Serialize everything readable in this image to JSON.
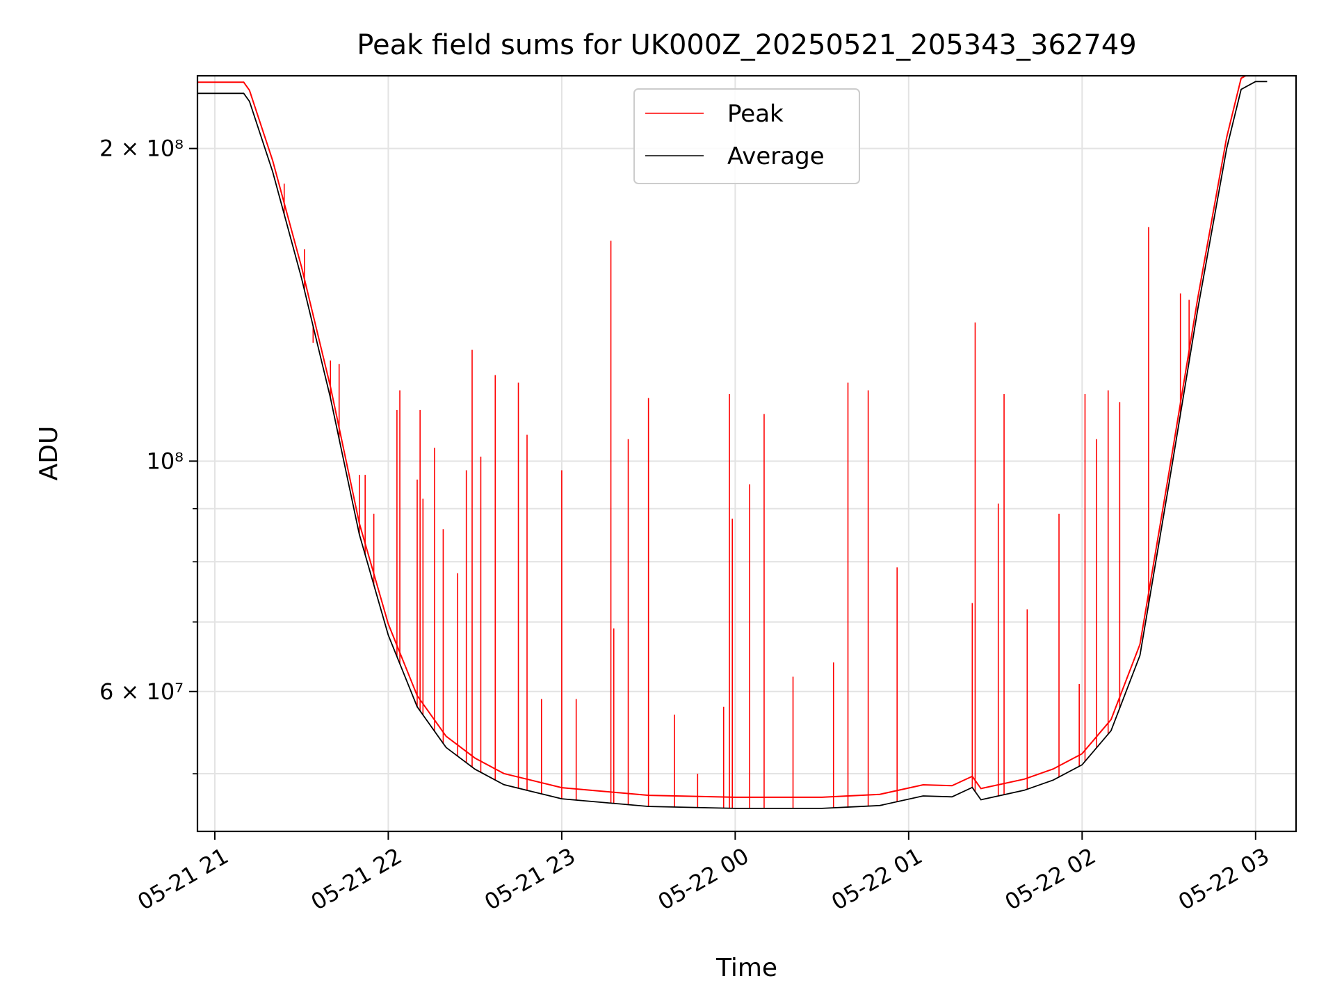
{
  "chart_data": {
    "type": "line",
    "title": "Peak field sums for UK000Z_20250521_205343_362749",
    "xlabel": "Time",
    "ylabel": "ADU",
    "y_scale": "log",
    "ylim": [
      44000000,
      235000000
    ],
    "xlim": [
      "2025-05-21T20:54",
      "2025-05-22T03:14"
    ],
    "x_ticks": [
      {
        "t": "2025-05-21T21:00",
        "label": "05-21 21"
      },
      {
        "t": "2025-05-21T22:00",
        "label": "05-21 22"
      },
      {
        "t": "2025-05-21T23:00",
        "label": "05-21 23"
      },
      {
        "t": "2025-05-22T00:00",
        "label": "05-22 00"
      },
      {
        "t": "2025-05-22T01:00",
        "label": "05-22 01"
      },
      {
        "t": "2025-05-22T02:00",
        "label": "05-22 02"
      },
      {
        "t": "2025-05-22T03:00",
        "label": "05-22 03"
      }
    ],
    "y_ticks_major": [
      {
        "v": 60000000,
        "label": "6 × 10⁷"
      },
      {
        "v": 100000000,
        "label": "10⁸"
      },
      {
        "v": 200000000,
        "label": "2 × 10⁸"
      }
    ],
    "y_ticks_minor": [
      50000000,
      70000000,
      80000000,
      90000000
    ],
    "grid": true,
    "legend_position": "top-center",
    "series": [
      {
        "name": "Average",
        "color": "#000000",
        "points": [
          [
            "2025-05-21T20:54",
            226000000
          ],
          [
            "2025-05-21T21:10",
            226000000
          ],
          [
            "2025-05-21T21:12",
            222000000
          ],
          [
            "2025-05-21T21:20",
            190000000
          ],
          [
            "2025-05-21T21:30",
            150000000
          ],
          [
            "2025-05-21T21:40",
            115000000
          ],
          [
            "2025-05-21T21:50",
            85000000
          ],
          [
            "2025-05-21T22:00",
            68000000
          ],
          [
            "2025-05-21T22:10",
            58000000
          ],
          [
            "2025-05-21T22:20",
            53000000
          ],
          [
            "2025-05-21T22:30",
            50500000
          ],
          [
            "2025-05-21T22:40",
            48800000
          ],
          [
            "2025-05-21T23:00",
            47300000
          ],
          [
            "2025-05-21T23:30",
            46500000
          ],
          [
            "2025-05-22T00:00",
            46300000
          ],
          [
            "2025-05-22T00:30",
            46300000
          ],
          [
            "2025-05-22T00:50",
            46600000
          ],
          [
            "2025-05-22T01:05",
            47600000
          ],
          [
            "2025-05-22T01:15",
            47500000
          ],
          [
            "2025-05-22T01:22",
            48500000
          ],
          [
            "2025-05-22T01:25",
            47200000
          ],
          [
            "2025-05-22T01:40",
            48200000
          ],
          [
            "2025-05-22T01:50",
            49300000
          ],
          [
            "2025-05-22T02:00",
            51000000
          ],
          [
            "2025-05-22T02:10",
            55000000
          ],
          [
            "2025-05-22T02:20",
            65000000
          ],
          [
            "2025-05-22T02:30",
            95000000
          ],
          [
            "2025-05-22T02:40",
            140000000
          ],
          [
            "2025-05-22T02:50",
            200000000
          ],
          [
            "2025-05-22T02:55",
            228000000
          ],
          [
            "2025-05-22T03:00",
            232000000
          ],
          [
            "2025-05-22T03:04",
            232000000
          ]
        ]
      },
      {
        "name": "Peak",
        "color": "#ff0000",
        "baseline_ratio": 1.025,
        "spikes": [
          [
            "2025-05-21T21:24",
            185000000
          ],
          [
            "2025-05-21T21:31",
            160000000
          ],
          [
            "2025-05-21T21:34",
            130000000
          ],
          [
            "2025-05-21T21:40",
            125000000
          ],
          [
            "2025-05-21T21:43",
            124000000
          ],
          [
            "2025-05-21T21:50",
            97000000
          ],
          [
            "2025-05-21T21:52",
            97000000
          ],
          [
            "2025-05-21T21:55",
            89000000
          ],
          [
            "2025-05-21T22:03",
            112000000
          ],
          [
            "2025-05-21T22:04",
            117000000
          ],
          [
            "2025-05-21T22:10",
            96000000
          ],
          [
            "2025-05-21T22:11",
            112000000
          ],
          [
            "2025-05-21T22:12",
            92000000
          ],
          [
            "2025-05-21T22:16",
            103000000
          ],
          [
            "2025-05-21T22:19",
            86000000
          ],
          [
            "2025-05-21T22:24",
            78000000
          ],
          [
            "2025-05-21T22:27",
            98000000
          ],
          [
            "2025-05-21T22:29",
            128000000
          ],
          [
            "2025-05-21T22:32",
            101000000
          ],
          [
            "2025-05-21T22:37",
            121000000
          ],
          [
            "2025-05-21T22:45",
            119000000
          ],
          [
            "2025-05-21T22:48",
            106000000
          ],
          [
            "2025-05-21T22:53",
            59000000
          ],
          [
            "2025-05-21T23:00",
            98000000
          ],
          [
            "2025-05-21T23:05",
            59000000
          ],
          [
            "2025-05-21T23:17",
            163000000
          ],
          [
            "2025-05-21T23:18",
            69000000
          ],
          [
            "2025-05-21T23:23",
            105000000
          ],
          [
            "2025-05-21T23:30",
            115000000
          ],
          [
            "2025-05-21T23:39",
            57000000
          ],
          [
            "2025-05-21T23:47",
            50000000
          ],
          [
            "2025-05-21T23:56",
            58000000
          ],
          [
            "2025-05-21T23:58",
            116000000
          ],
          [
            "2025-05-21T23:59",
            88000000
          ],
          [
            "2025-05-22T00:05",
            95000000
          ],
          [
            "2025-05-22T00:10",
            111000000
          ],
          [
            "2025-05-22T00:20",
            62000000
          ],
          [
            "2025-05-22T00:34",
            64000000
          ],
          [
            "2025-05-22T00:39",
            119000000
          ],
          [
            "2025-05-22T00:46",
            117000000
          ],
          [
            "2025-05-22T00:56",
            79000000
          ],
          [
            "2025-05-22T01:22",
            73000000
          ],
          [
            "2025-05-22T01:23",
            136000000
          ],
          [
            "2025-05-22T01:31",
            91000000
          ],
          [
            "2025-05-22T01:33",
            116000000
          ],
          [
            "2025-05-22T01:41",
            72000000
          ],
          [
            "2025-05-22T01:52",
            89000000
          ],
          [
            "2025-05-22T01:59",
            61000000
          ],
          [
            "2025-05-22T02:01",
            116000000
          ],
          [
            "2025-05-22T02:05",
            105000000
          ],
          [
            "2025-05-22T02:09",
            117000000
          ],
          [
            "2025-05-22T02:13",
            114000000
          ],
          [
            "2025-05-22T02:23",
            168000000
          ],
          [
            "2025-05-22T02:34",
            145000000
          ],
          [
            "2025-05-22T02:37",
            143000000
          ]
        ]
      }
    ]
  }
}
